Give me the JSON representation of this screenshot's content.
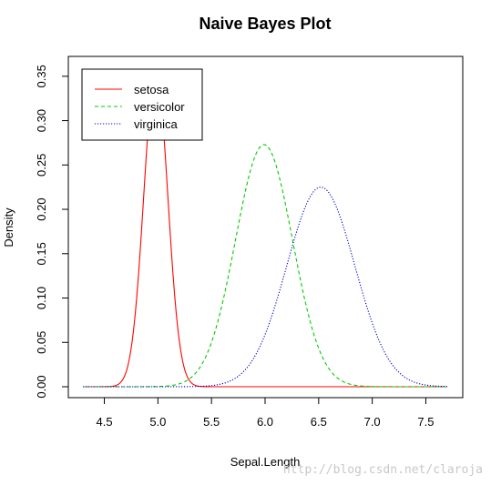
{
  "chart_data": {
    "type": "line",
    "title": "Naive Bayes Plot",
    "xlabel": "Sepal.Length",
    "ylabel": "Density",
    "xlim": [
      4.3,
      7.7
    ],
    "ylim": [
      0,
      0.357
    ],
    "x_ticks": [
      "4.5",
      "5.0",
      "5.5",
      "6.0",
      "6.5",
      "7.0",
      "7.5"
    ],
    "y_ticks": [
      "0.00",
      "0.05",
      "0.10",
      "0.15",
      "0.20",
      "0.25",
      "0.30",
      "0.35"
    ],
    "x_tick_values": [
      4.5,
      5.0,
      5.5,
      6.0,
      6.5,
      7.0,
      7.5
    ],
    "y_tick_values": [
      0,
      0.05,
      0.1,
      0.15,
      0.2,
      0.25,
      0.3,
      0.35
    ],
    "grid": false,
    "legend_position": "top-left",
    "series": [
      {
        "name": "setosa",
        "color": "#ff0000",
        "line_style": "solid",
        "distribution": "normal",
        "mean": 4.98,
        "sd": 0.1118,
        "peak_density": 0.357
      },
      {
        "name": "versicolor",
        "color": "#00cc00",
        "line_style": "dashed",
        "distribution": "normal",
        "mean": 5.99,
        "sd": 0.2659,
        "peak_density": 0.273
      },
      {
        "name": "virginica",
        "color": "#0000cc",
        "line_style": "dotted",
        "distribution": "normal",
        "mean": 6.52,
        "sd": 0.3176,
        "peak_density": 0.225
      }
    ]
  },
  "watermark": "http://blog.csdn.net/claroja"
}
